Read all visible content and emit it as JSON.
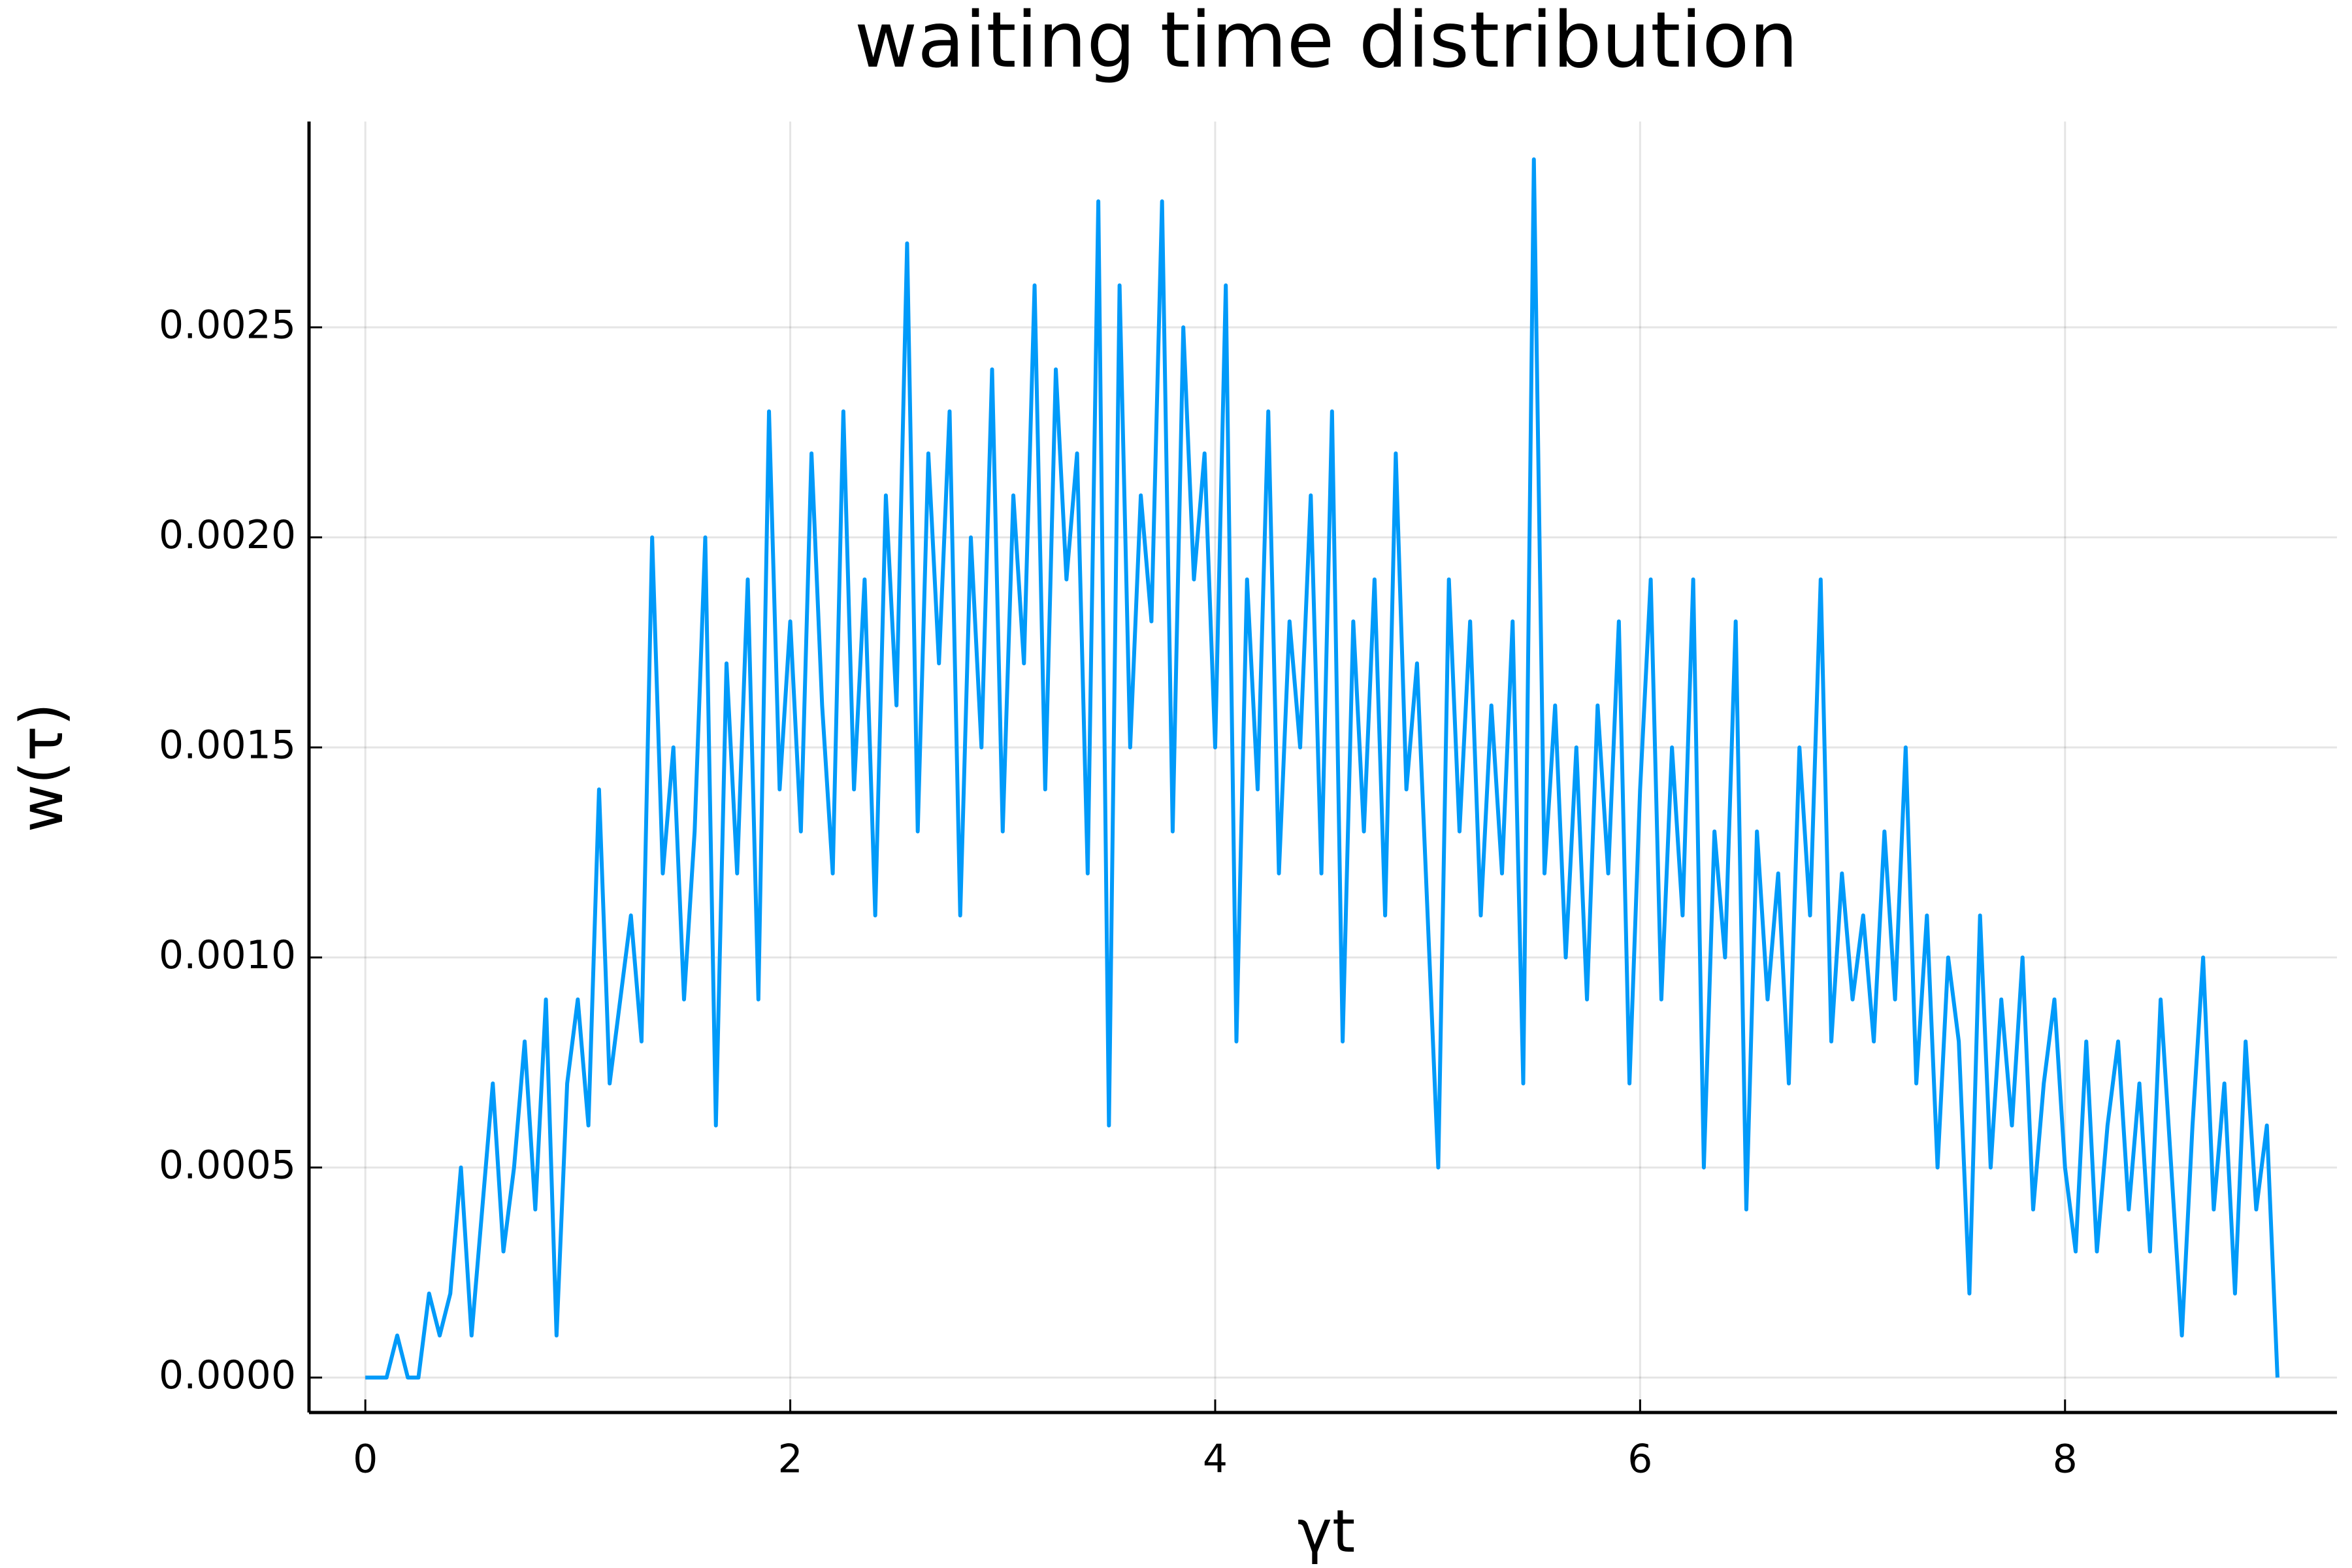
{
  "chart_data": {
    "type": "line",
    "title": "waiting time distribution",
    "x_label": "γt",
    "y_label": "w(τ)",
    "color": "#009af9",
    "grid": true,
    "xlim": [
      -0.265,
      9.28
    ],
    "ylim": [
      -8.33e-05,
      0.00299
    ],
    "xticks": [
      0,
      2,
      4,
      6,
      8
    ],
    "yticks": [
      {
        "value": 0,
        "label": "0.0000"
      },
      {
        "value": 0.0005,
        "label": "0.0005"
      },
      {
        "value": 0.001,
        "label": "0.0010"
      },
      {
        "value": 0.0015,
        "label": "0.0015"
      },
      {
        "value": 0.002,
        "label": "0.0020"
      },
      {
        "value": 0.0025,
        "label": "0.0025"
      }
    ],
    "x": [
      0,
      0.05,
      0.1,
      0.15,
      0.2,
      0.25,
      0.3,
      0.35,
      0.4,
      0.45,
      0.5,
      0.55,
      0.6,
      0.65,
      0.7,
      0.75,
      0.8,
      0.85,
      0.9,
      0.95,
      1,
      1.05,
      1.1,
      1.15,
      1.2,
      1.25,
      1.3,
      1.35,
      1.4,
      1.45,
      1.5,
      1.55,
      1.6,
      1.65,
      1.7,
      1.75,
      1.8,
      1.85,
      1.9,
      1.95,
      2,
      2.05,
      2.1,
      2.15,
      2.2,
      2.25,
      2.3,
      2.35,
      2.4,
      2.45,
      2.5,
      2.55,
      2.6,
      2.65,
      2.7,
      2.75,
      2.8,
      2.85,
      2.9,
      2.95,
      3,
      3.05,
      3.1,
      3.15,
      3.2,
      3.25,
      3.3,
      3.35,
      3.4,
      3.45,
      3.5,
      3.55,
      3.6,
      3.65,
      3.7,
      3.75,
      3.8,
      3.85,
      3.9,
      3.95,
      4,
      4.05,
      4.1,
      4.15,
      4.2,
      4.25,
      4.3,
      4.35,
      4.4,
      4.45,
      4.5,
      4.55,
      4.6,
      4.65,
      4.7,
      4.75,
      4.8,
      4.85,
      4.9,
      4.95,
      5,
      5.05,
      5.1,
      5.15,
      5.2,
      5.25,
      5.3,
      5.35,
      5.4,
      5.45,
      5.5,
      5.55,
      5.6,
      5.65,
      5.7,
      5.75,
      5.8,
      5.85,
      5.9,
      5.95,
      6,
      6.05,
      6.1,
      6.15,
      6.2,
      6.25,
      6.3,
      6.35,
      6.4,
      6.45,
      6.5,
      6.55,
      6.6,
      6.65,
      6.7,
      6.75,
      6.8,
      6.85,
      6.9,
      6.95,
      7,
      7.05,
      7.1,
      7.15,
      7.2,
      7.25,
      7.3,
      7.35,
      7.4,
      7.45,
      7.5,
      7.55,
      7.6,
      7.65,
      7.7,
      7.75,
      7.8,
      7.85,
      7.9,
      7.95,
      8,
      8.05,
      8.1,
      8.15,
      8.2,
      8.25,
      8.3,
      8.35,
      8.4,
      8.45,
      8.5,
      8.55,
      8.6,
      8.65,
      8.7,
      8.75,
      8.8,
      8.85,
      8.9,
      8.95,
      9
    ],
    "values": [
      0,
      0,
      0,
      0.0001,
      0,
      0,
      0.0002,
      0.0001,
      0.0002,
      0.0005,
      0.0001,
      0.0004,
      0.0007,
      0.0003,
      0.0005,
      0.0008,
      0.0004,
      0.0009,
      0.0001,
      0.0007,
      0.0009,
      0.0006,
      0.0014,
      0.0007,
      0.0009,
      0.0011,
      0.0008,
      0.002,
      0.0012,
      0.0015,
      0.0009,
      0.0013,
      0.002,
      0.0006,
      0.0017,
      0.0012,
      0.0019,
      0.0009,
      0.0023,
      0.0014,
      0.0018,
      0.0013,
      0.0022,
      0.0016,
      0.0012,
      0.0023,
      0.0014,
      0.0019,
      0.0011,
      0.0021,
      0.0016,
      0.0027,
      0.0013,
      0.0022,
      0.0017,
      0.0023,
      0.0011,
      0.002,
      0.0015,
      0.0024,
      0.0013,
      0.0021,
      0.0017,
      0.0026,
      0.0014,
      0.0024,
      0.0019,
      0.0022,
      0.0012,
      0.0028,
      0.0006,
      0.0026,
      0.0015,
      0.0021,
      0.0018,
      0.0028,
      0.0013,
      0.0025,
      0.0019,
      0.0022,
      0.0015,
      0.0026,
      0.0008,
      0.0019,
      0.0014,
      0.0023,
      0.0012,
      0.0018,
      0.0015,
      0.0021,
      0.0012,
      0.0023,
      0.0008,
      0.0018,
      0.0013,
      0.0019,
      0.0011,
      0.0022,
      0.0014,
      0.0017,
      0.0011,
      0.0005,
      0.0019,
      0.0013,
      0.0018,
      0.0011,
      0.0016,
      0.0012,
      0.0018,
      0.0007,
      0.0029,
      0.0012,
      0.0016,
      0.001,
      0.0015,
      0.0009,
      0.0016,
      0.0012,
      0.0018,
      0.0007,
      0.0014,
      0.0019,
      0.0009,
      0.0015,
      0.0011,
      0.0019,
      0.0005,
      0.0013,
      0.001,
      0.0018,
      0.0004,
      0.0013,
      0.0009,
      0.0012,
      0.0007,
      0.0015,
      0.0011,
      0.0019,
      0.0008,
      0.0012,
      0.0009,
      0.0011,
      0.0008,
      0.0013,
      0.0009,
      0.0015,
      0.0007,
      0.0011,
      0.0005,
      0.001,
      0.0008,
      0.0002,
      0.0011,
      0.0005,
      0.0009,
      0.0006,
      0.001,
      0.0004,
      0.0007,
      0.0009,
      0.0005,
      0.0003,
      0.0008,
      0.0003,
      0.0006,
      0.0008,
      0.0004,
      0.0007,
      0.0003,
      0.0009,
      0.0005,
      0.0001,
      0.0006,
      0.001,
      0.0004,
      0.0007,
      0.0002,
      0.0008,
      0.0004,
      0.0006,
      0
    ]
  }
}
